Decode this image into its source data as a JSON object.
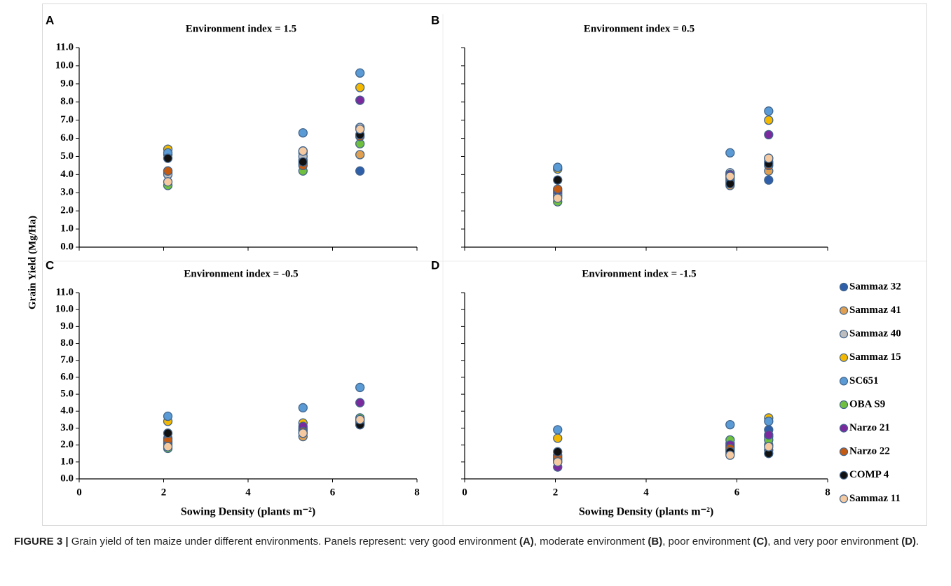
{
  "chart_data": {
    "type": "scatter",
    "ylabel": "Grain Yield (Mg/Ha)",
    "legend": [
      {
        "name": "Sammaz 32",
        "color": "#2e5fa8"
      },
      {
        "name": "Sammaz 41",
        "color": "#e0a050"
      },
      {
        "name": "Sammaz 40",
        "color": "#bdbdbd"
      },
      {
        "name": "Sammaz 15",
        "color": "#f5b800"
      },
      {
        "name": "SC651",
        "color": "#5b9bd5"
      },
      {
        "name": "OBA S9",
        "color": "#70c040"
      },
      {
        "name": "Narzo 21",
        "color": "#7b2a9e"
      },
      {
        "name": "Narzo 22",
        "color": "#c55a11"
      },
      {
        "name": "COMP 4",
        "color": "#111111"
      },
      {
        "name": "Sammaz 11",
        "color": "#f6caa0"
      }
    ],
    "ylim": [
      0,
      11
    ],
    "panels": [
      {
        "label": "A",
        "title": "Environment index = 1.5",
        "x": [
          2.1,
          5.3,
          6.65
        ],
        "xlim": [
          0,
          8
        ],
        "xticks": [
          0,
          2,
          4,
          6,
          8
        ],
        "xtick_labels": false,
        "ytick_labels": true,
        "yticks": [
          {
            "value": 0,
            "label": "0.0"
          },
          {
            "value": 1,
            "label": "1.0"
          },
          {
            "value": 2,
            "label": "2.0"
          },
          {
            "value": 3,
            "label": "3.0"
          },
          {
            "value": 4,
            "label": "4.0"
          },
          {
            "value": 5,
            "label": "5.0"
          },
          {
            "value": 6,
            "label": "6.0"
          },
          {
            "value": 7,
            "label": "7.0"
          },
          {
            "value": 8,
            "label": "8.0"
          },
          {
            "value": 9,
            "label": "9.0"
          },
          {
            "value": 10,
            "label": "10.0"
          },
          {
            "value": 11,
            "label": "11.0"
          }
        ],
        "series": [
          {
            "values": [
              5.1,
              4.8,
              4.2
            ]
          },
          {
            "values": [
              4.1,
              5.2,
              5.1
            ]
          },
          {
            "values": [
              4.0,
              5.0,
              6.6
            ]
          },
          {
            "values": [
              5.4,
              5.3,
              8.8
            ]
          },
          {
            "values": [
              5.2,
              6.3,
              9.6
            ]
          },
          {
            "values": [
              3.4,
              4.2,
              5.7
            ]
          },
          {
            "values": [
              4.2,
              4.6,
              8.1
            ]
          },
          {
            "values": [
              4.2,
              4.5,
              6.1
            ]
          },
          {
            "values": [
              4.9,
              4.7,
              6.2
            ]
          },
          {
            "values": [
              3.6,
              5.3,
              6.5
            ]
          }
        ]
      },
      {
        "label": "B",
        "title": "Environment index = 0.5",
        "x": [
          2.05,
          5.85,
          6.7
        ],
        "xlim": [
          0,
          8
        ],
        "xticks": [
          0,
          2,
          4,
          6,
          8
        ],
        "xtick_labels": false,
        "ytick_labels": false,
        "yticks": [
          0,
          1,
          2,
          3,
          4,
          5,
          6,
          7,
          8,
          9,
          10,
          11
        ],
        "series": [
          {
            "values": [
              3.0,
              3.6,
              3.7
            ]
          },
          {
            "values": [
              2.8,
              3.4,
              4.2
            ]
          },
          {
            "values": [
              2.9,
              4.1,
              4.9
            ]
          },
          {
            "values": [
              4.3,
              4.0,
              7.0
            ]
          },
          {
            "values": [
              4.4,
              5.2,
              7.5
            ]
          },
          {
            "values": [
              2.5,
              3.7,
              4.7
            ]
          },
          {
            "values": [
              3.1,
              4.0,
              6.2
            ]
          },
          {
            "values": [
              3.2,
              3.8,
              4.5
            ]
          },
          {
            "values": [
              3.7,
              3.5,
              4.6
            ]
          },
          {
            "values": [
              2.7,
              3.9,
              4.9
            ]
          }
        ]
      },
      {
        "label": "C",
        "title": "Environment index = -0.5",
        "x": [
          2.1,
          5.3,
          6.65
        ],
        "xlim": [
          0,
          8
        ],
        "xticks": [
          0,
          2,
          4,
          6,
          8
        ],
        "xtick_labels": true,
        "ytick_labels": true,
        "xlabel": "Sowing Density (plants m⁻²)",
        "yticks": [
          {
            "value": 0,
            "label": "0.0"
          },
          {
            "value": 1,
            "label": "1.0"
          },
          {
            "value": 2,
            "label": "2.0"
          },
          {
            "value": 3,
            "label": "3.0"
          },
          {
            "value": 4,
            "label": "4.0"
          },
          {
            "value": 5,
            "label": "5.0"
          },
          {
            "value": 6,
            "label": "6.0"
          },
          {
            "value": 7,
            "label": "7.0"
          },
          {
            "value": 8,
            "label": "8.0"
          },
          {
            "value": 9,
            "label": "9.0"
          },
          {
            "value": 10,
            "label": "10.0"
          },
          {
            "value": 11,
            "label": "11.0"
          }
        ],
        "series": [
          {
            "values": [
              2.4,
              2.9,
              3.3
            ]
          },
          {
            "values": [
              2.1,
              2.5,
              3.2
            ]
          },
          {
            "values": [
              2.0,
              3.0,
              3.4
            ]
          },
          {
            "values": [
              3.4,
              3.3,
              3.5
            ]
          },
          {
            "values": [
              3.7,
              4.2,
              5.4
            ]
          },
          {
            "values": [
              1.8,
              2.9,
              3.6
            ]
          },
          {
            "values": [
              2.2,
              3.1,
              4.5
            ]
          },
          {
            "values": [
              2.3,
              2.8,
              3.3
            ]
          },
          {
            "values": [
              2.7,
              2.7,
              3.2
            ]
          },
          {
            "values": [
              1.9,
              2.7,
              3.5
            ]
          }
        ]
      },
      {
        "label": "D",
        "title": "Environment index = -1.5",
        "x": [
          2.05,
          5.85,
          6.7
        ],
        "xlim": [
          0,
          8
        ],
        "xticks": [
          0,
          2,
          4,
          6,
          8
        ],
        "xtick_labels": true,
        "ytick_labels": false,
        "xlabel": "Sowing Density (plants m⁻²)",
        "yticks": [
          0,
          1,
          2,
          3,
          4,
          5,
          6,
          7,
          8,
          9,
          10,
          11
        ],
        "series": [
          {
            "values": [
              1.4,
              1.9,
              2.9
            ]
          },
          {
            "values": [
              1.0,
              1.5,
              2.0
            ]
          },
          {
            "values": [
              1.1,
              1.7,
              2.5
            ]
          },
          {
            "values": [
              2.4,
              2.1,
              3.6
            ]
          },
          {
            "values": [
              2.9,
              3.2,
              3.4
            ]
          },
          {
            "values": [
              1.2,
              2.3,
              2.3
            ]
          },
          {
            "values": [
              0.7,
              2.0,
              2.6
            ]
          },
          {
            "values": [
              1.3,
              1.8,
              1.7
            ]
          },
          {
            "values": [
              1.6,
              1.6,
              1.5
            ]
          },
          {
            "values": [
              1.0,
              1.4,
              1.9
            ]
          }
        ]
      }
    ]
  },
  "caption": [
    "FIGURE 3 |",
    " Grain yield of ten maize under different environments. Panels represent: very good environment ",
    "(A)",
    ", moderate environment ",
    "(B)",
    ", poor environment ",
    "(C)",
    ", and very poor environment ",
    "(D)",
    "."
  ]
}
